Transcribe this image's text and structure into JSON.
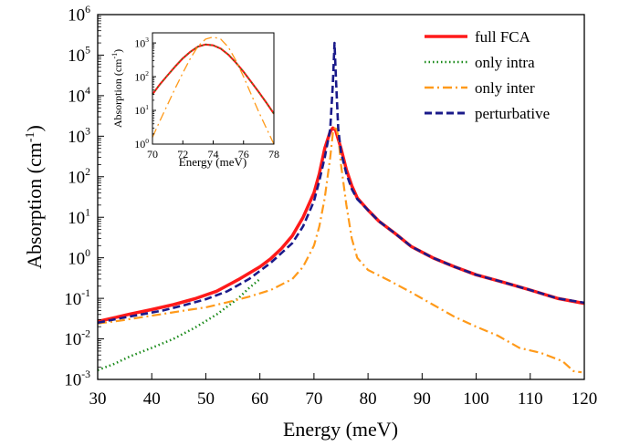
{
  "chart_data": [
    {
      "type": "line",
      "xlabel": "Energy (meV)",
      "ylabel": "Absorption (cm-1)",
      "ylabel_base": "Absorption (cm",
      "ylabel_sup": "-1",
      "ylabel_close": ")",
      "xscale": "linear",
      "yscale": "log",
      "xlim": [
        30,
        120
      ],
      "ylim_exp": [
        -3,
        6
      ],
      "xticks": [
        30,
        40,
        50,
        60,
        70,
        80,
        90,
        100,
        110,
        120
      ],
      "yticks_exp": [
        -3,
        -2,
        -1,
        0,
        1,
        2,
        3,
        4,
        5,
        6
      ],
      "grid": false,
      "legend_position": "top-right",
      "series": [
        {
          "name": "full FCA",
          "color": "#ff1a1a",
          "style": "solid",
          "points": [
            [
              30,
              0.027
            ],
            [
              33,
              0.033
            ],
            [
              36,
              0.041
            ],
            [
              40,
              0.053
            ],
            [
              44,
              0.07
            ],
            [
              48,
              0.098
            ],
            [
              52,
              0.15
            ],
            [
              56,
              0.29
            ],
            [
              60,
              0.6
            ],
            [
              62,
              0.95
            ],
            [
              64,
              1.7
            ],
            [
              66,
              3.5
            ],
            [
              68,
              10
            ],
            [
              70,
              40
            ],
            [
              71,
              120
            ],
            [
              72,
              500
            ],
            [
              73,
              1300
            ],
            [
              73.5,
              1600
            ],
            [
              74,
              1400
            ],
            [
              75,
              500
            ],
            [
              76,
              150
            ],
            [
              77,
              60
            ],
            [
              78,
              30
            ],
            [
              80,
              15
            ],
            [
              82,
              8
            ],
            [
              85,
              4
            ],
            [
              88,
              1.9
            ],
            [
              92,
              1
            ],
            [
              96,
              0.6
            ],
            [
              100,
              0.38
            ],
            [
              105,
              0.25
            ],
            [
              110,
              0.16
            ],
            [
              115,
              0.1
            ],
            [
              120,
              0.075
            ]
          ]
        },
        {
          "name": "only intra",
          "color": "#1a8a1a",
          "style": "dotted",
          "points": [
            [
              30,
              0.0017
            ],
            [
              33,
              0.0024
            ],
            [
              36,
              0.0037
            ],
            [
              40,
              0.006
            ],
            [
              44,
              0.01
            ],
            [
              48,
              0.019
            ],
            [
              52,
              0.04
            ],
            [
              56,
              0.1
            ],
            [
              58,
              0.18
            ],
            [
              60,
              0.3
            ]
          ]
        },
        {
          "name": "only inter",
          "color": "#ff9a1a",
          "style": "dashdot",
          "points": [
            [
              30,
              0.024
            ],
            [
              34,
              0.028
            ],
            [
              38,
              0.034
            ],
            [
              42,
              0.041
            ],
            [
              46,
              0.05
            ],
            [
              50,
              0.06
            ],
            [
              54,
              0.08
            ],
            [
              58,
              0.11
            ],
            [
              62,
              0.16
            ],
            [
              66,
              0.3
            ],
            [
              68,
              0.6
            ],
            [
              70,
              2
            ],
            [
              71,
              6
            ],
            [
              72,
              30
            ],
            [
              73,
              300
            ],
            [
              73.5,
              1200
            ],
            [
              74,
              1800
            ],
            [
              74.5,
              1000
            ],
            [
              75,
              200
            ],
            [
              76,
              20
            ],
            [
              77,
              3
            ],
            [
              78,
              1
            ],
            [
              80,
              0.5
            ],
            [
              84,
              0.27
            ],
            [
              88,
              0.14
            ],
            [
              92,
              0.07
            ],
            [
              96,
              0.035
            ],
            [
              100,
              0.02
            ],
            [
              104,
              0.012
            ],
            [
              108,
              0.006
            ],
            [
              112,
              0.0045
            ],
            [
              116,
              0.0028
            ],
            [
              118,
              0.0016
            ],
            [
              119.5,
              0.0015
            ]
          ]
        },
        {
          "name": "perturbative",
          "color": "#1a1a8a",
          "style": "dashed",
          "points": [
            [
              30,
              0.025
            ],
            [
              34,
              0.032
            ],
            [
              38,
              0.04
            ],
            [
              42,
              0.05
            ],
            [
              46,
              0.068
            ],
            [
              50,
              0.095
            ],
            [
              54,
              0.15
            ],
            [
              58,
              0.3
            ],
            [
              62,
              0.75
            ],
            [
              66,
              2.3
            ],
            [
              68,
              6
            ],
            [
              70,
              25
            ],
            [
              71,
              80
            ],
            [
              72,
              300
            ],
            [
              73,
              1500
            ],
            [
              73.5,
              20000
            ],
            [
              73.8,
              200000
            ],
            [
              74.1,
              20000
            ],
            [
              74.5,
              1500
            ],
            [
              75,
              400
            ],
            [
              76,
              120
            ],
            [
              77,
              50
            ],
            [
              78,
              28
            ],
            [
              80,
              15
            ],
            [
              82,
              8
            ],
            [
              85,
              4
            ],
            [
              88,
              1.9
            ],
            [
              92,
              1
            ],
            [
              96,
              0.6
            ],
            [
              100,
              0.38
            ],
            [
              105,
              0.25
            ],
            [
              110,
              0.16
            ],
            [
              115,
              0.1
            ],
            [
              120,
              0.078
            ]
          ]
        }
      ]
    },
    {
      "type": "line",
      "xlabel": "Energy (meV)",
      "ylabel": "Absorption (cm-1)",
      "ylabel_base": "Absorption (cm",
      "ylabel_sup": "-1",
      "ylabel_close": ")",
      "xscale": "linear",
      "yscale": "log",
      "xlim": [
        70,
        78
      ],
      "ylim_exp": [
        0,
        3.3
      ],
      "xticks": [
        70,
        72,
        74,
        76,
        78
      ],
      "yticks_exp": [
        0,
        1,
        2,
        3
      ],
      "grid": false,
      "series": [
        {
          "name": "full FCA",
          "color": "#ff1a1a",
          "style": "solid",
          "points": [
            [
              70,
              30
            ],
            [
              70.5,
              60
            ],
            [
              71,
              110
            ],
            [
              71.5,
              200
            ],
            [
              72,
              350
            ],
            [
              72.5,
              550
            ],
            [
              73,
              780
            ],
            [
              73.5,
              900
            ],
            [
              74,
              850
            ],
            [
              74.5,
              680
            ],
            [
              75,
              450
            ],
            [
              75.5,
              260
            ],
            [
              76,
              140
            ],
            [
              76.5,
              70
            ],
            [
              77,
              35
            ],
            [
              77.5,
              17
            ],
            [
              78,
              8
            ]
          ]
        },
        {
          "name": "only intra",
          "color": "#1a8a1a",
          "style": "dotted",
          "points": [
            [
              70,
              30
            ],
            [
              70.5,
              60
            ],
            [
              71,
              110
            ],
            [
              71.5,
              200
            ],
            [
              72,
              350
            ],
            [
              72.5,
              550
            ],
            [
              73,
              780
            ],
            [
              73.5,
              900
            ],
            [
              74,
              850
            ],
            [
              74.5,
              680
            ],
            [
              75,
              450
            ],
            [
              75.5,
              260
            ],
            [
              76,
              140
            ],
            [
              76.5,
              70
            ],
            [
              77,
              35
            ],
            [
              77.5,
              17
            ],
            [
              78,
              8
            ]
          ]
        },
        {
          "name": "only inter",
          "color": "#ff9a1a",
          "style": "dashdot",
          "points": [
            [
              70,
              1.6
            ],
            [
              70.5,
              5
            ],
            [
              71,
              15
            ],
            [
              71.5,
              45
            ],
            [
              72,
              130
            ],
            [
              72.5,
              350
            ],
            [
              73,
              800
            ],
            [
              73.5,
              1300
            ],
            [
              74,
              1500
            ],
            [
              74.5,
              1300
            ],
            [
              75,
              750
            ],
            [
              75.5,
              300
            ],
            [
              76,
              100
            ],
            [
              76.5,
              30
            ],
            [
              77,
              9
            ],
            [
              77.5,
              3
            ],
            [
              78,
              1
            ]
          ]
        }
      ]
    }
  ]
}
